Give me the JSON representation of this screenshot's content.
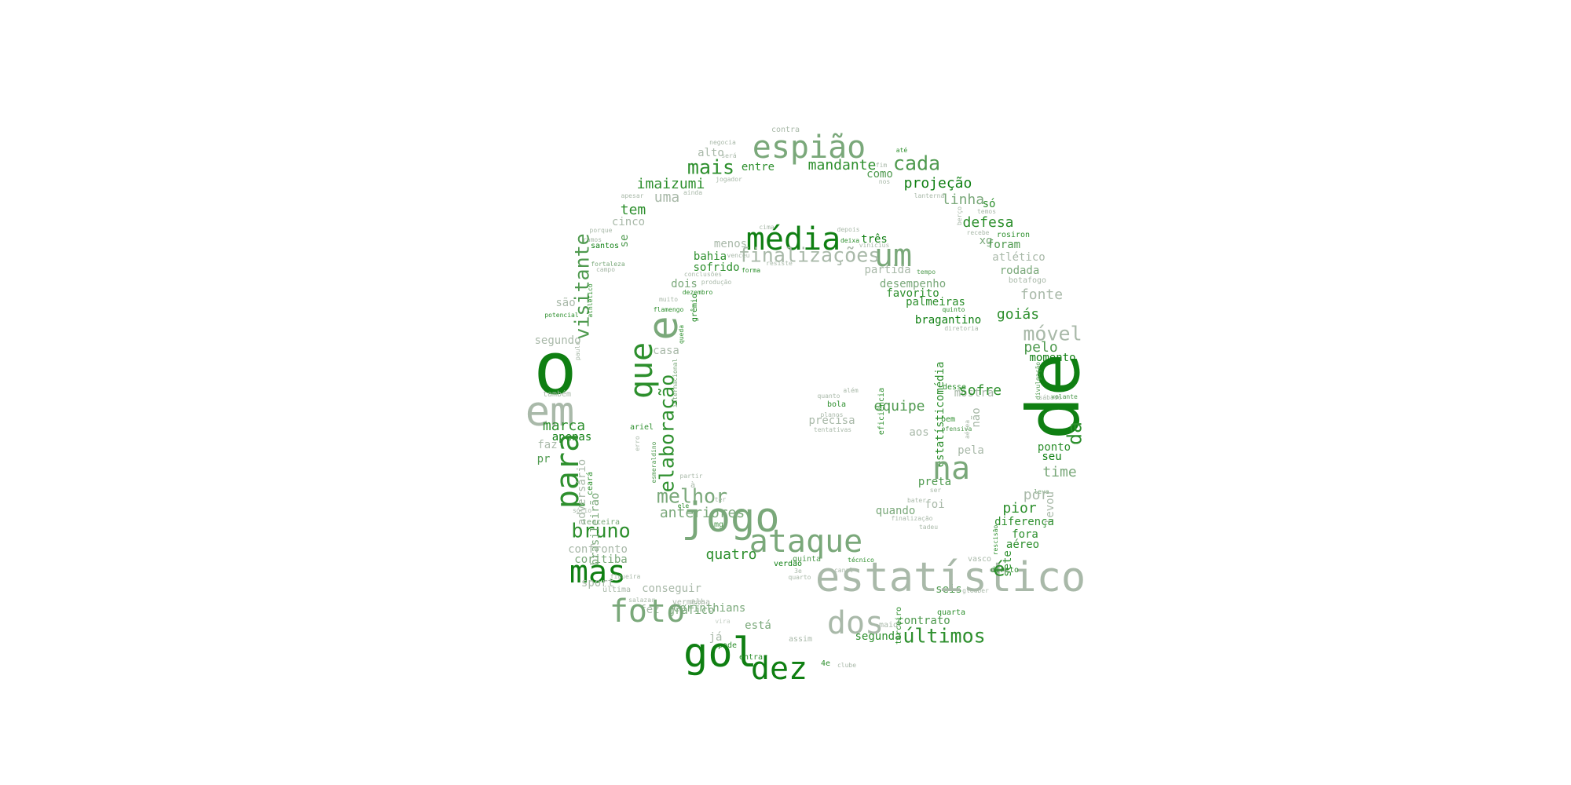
{
  "words": [
    {
      "text": "espião",
      "size": 3,
      "color": "c3"
    },
    {
      "text": "contra",
      "size": 7,
      "color": "c4"
    },
    {
      "text": "mais",
      "size": 4,
      "color": "c1"
    },
    {
      "text": "cada",
      "size": 4,
      "color": "c2"
    },
    {
      "text": "mandante",
      "size": 5,
      "color": "c1"
    },
    {
      "text": "entre",
      "size": 6,
      "color": "c1"
    },
    {
      "text": "imaizumi",
      "size": 5,
      "color": "c1"
    },
    {
      "text": "alto",
      "size": 6,
      "color": "c4"
    },
    {
      "text": "negocia",
      "size": 8,
      "color": "c4"
    },
    {
      "text": "será",
      "size": 8,
      "color": "c4"
    },
    {
      "text": "até",
      "size": 8,
      "color": "c1"
    },
    {
      "text": "como",
      "size": 6,
      "color": "c2"
    },
    {
      "text": "fim",
      "size": 8,
      "color": "c4"
    },
    {
      "text": "nos",
      "size": 8,
      "color": "c4"
    },
    {
      "text": "projeção",
      "size": 5,
      "color": "c0"
    },
    {
      "text": "uma",
      "size": 5,
      "color": "c4"
    },
    {
      "text": "jogador",
      "size": 8,
      "color": "c4"
    },
    {
      "text": "ainda",
      "size": 8,
      "color": "c4"
    },
    {
      "text": "apesar",
      "size": 8,
      "color": "c4"
    },
    {
      "text": "linha",
      "size": 5,
      "color": "c3"
    },
    {
      "text": "só",
      "size": 6,
      "color": "c1"
    },
    {
      "text": "lanterna",
      "size": 8,
      "color": "c4"
    },
    {
      "text": "temos",
      "size": 8,
      "color": "c4"
    },
    {
      "text": "tem",
      "size": 5,
      "color": "c1"
    },
    {
      "text": "cinco",
      "size": 6,
      "color": "c4"
    },
    {
      "text": "defesa",
      "size": 5,
      "color": "c1"
    },
    {
      "text": "média",
      "size": 3,
      "color": "c0"
    },
    {
      "text": "um",
      "size": 3,
      "color": "c3"
    },
    {
      "text": "finalizações",
      "size": 4,
      "color": "c4"
    },
    {
      "text": "cima",
      "size": 8,
      "color": "c4"
    },
    {
      "text": "depois",
      "size": 8,
      "color": "c4"
    },
    {
      "text": "deixa",
      "size": 8,
      "color": "c1"
    },
    {
      "text": "três",
      "size": 6,
      "color": "c0"
    },
    {
      "text": "vinícius",
      "size": 8,
      "color": "c4"
    },
    {
      "text": "menos",
      "size": 6,
      "color": "c4"
    },
    {
      "text": "bahia",
      "size": 6,
      "color": "c1"
    },
    {
      "text": "venceu",
      "size": 8,
      "color": "c4"
    },
    {
      "text": "resiste",
      "size": 8,
      "color": "c4"
    },
    {
      "text": "porque",
      "size": 8,
      "color": "c4"
    },
    {
      "text": "ramos",
      "size": 8,
      "color": "c4"
    },
    {
      "text": "santos",
      "size": 7,
      "color": "c0"
    },
    {
      "text": "fortaleza",
      "size": 8,
      "color": "c3"
    },
    {
      "text": "campo",
      "size": 8,
      "color": "c4"
    },
    {
      "text": "se",
      "size": 6,
      "color": "c2"
    },
    {
      "text": "visitante",
      "size": 4,
      "color": "c2"
    },
    {
      "text": "athletico",
      "size": 8,
      "color": "c1"
    },
    {
      "text": "potencial",
      "size": 8,
      "color": "c1"
    },
    {
      "text": "são",
      "size": 6,
      "color": "c4"
    },
    {
      "text": "sofrido",
      "size": 6,
      "color": "c1"
    },
    {
      "text": "partida",
      "size": 6,
      "color": "c4"
    },
    {
      "text": "tempo",
      "size": 8,
      "color": "c2"
    },
    {
      "text": "conclusões",
      "size": 8,
      "color": "c4"
    },
    {
      "text": "forma",
      "size": 8,
      "color": "c1"
    },
    {
      "text": "produção",
      "size": 8,
      "color": "c4"
    },
    {
      "text": "dois",
      "size": 6,
      "color": "c3"
    },
    {
      "text": "dezembro",
      "size": 8,
      "color": "c1"
    },
    {
      "text": "muito",
      "size": 8,
      "color": "c4"
    },
    {
      "text": "flamengo",
      "size": 8,
      "color": "c1"
    },
    {
      "text": "grêmio",
      "size": 7,
      "color": "c0"
    },
    {
      "text": "desempenho",
      "size": 6,
      "color": "c3"
    },
    {
      "text": "favorito",
      "size": 6,
      "color": "c1"
    },
    {
      "text": "palmeiras",
      "size": 6,
      "color": "c1"
    },
    {
      "text": "bragantino",
      "size": 6,
      "color": "c0"
    },
    {
      "text": "diretoria",
      "size": 8,
      "color": "c4"
    },
    {
      "text": "quinto",
      "size": 8,
      "color": "c1"
    },
    {
      "text": "berço",
      "size": 8,
      "color": "c4"
    },
    {
      "text": "recebe",
      "size": 8,
      "color": "c4"
    },
    {
      "text": "xg",
      "size": 6,
      "color": "c3"
    },
    {
      "text": "rosiron",
      "size": 7,
      "color": "c1"
    },
    {
      "text": "foram",
      "size": 6,
      "color": "c2"
    },
    {
      "text": "atlético",
      "size": 6,
      "color": "c4"
    },
    {
      "text": "rodada",
      "size": 6,
      "color": "c3"
    },
    {
      "text": "botafogo",
      "size": 7,
      "color": "c4"
    },
    {
      "text": "fonte",
      "size": 5,
      "color": "c4"
    },
    {
      "text": "goiás",
      "size": 5,
      "color": "c1"
    },
    {
      "text": "móvel",
      "size": 4,
      "color": "c4"
    },
    {
      "text": "pelo",
      "size": 5,
      "color": "c2"
    },
    {
      "text": "momento",
      "size": 6,
      "color": "c0"
    },
    {
      "text": "de",
      "size": 1,
      "color": "c0"
    },
    {
      "text": "divulgação",
      "size": 8,
      "color": "c2"
    },
    {
      "text": "sábado",
      "size": 8,
      "color": "c4"
    },
    {
      "text": "segundo",
      "size": 6,
      "color": "c4"
    },
    {
      "text": "paulo",
      "size": 8,
      "color": "c4"
    },
    {
      "text": "o",
      "size": 1,
      "color": "c0"
    },
    {
      "text": "e",
      "size": 2,
      "color": "c3"
    },
    {
      "text": "que",
      "size": 3,
      "color": "c1"
    },
    {
      "text": "casa",
      "size": 6,
      "color": "c4"
    },
    {
      "text": "queda",
      "size": 8,
      "color": "c1"
    },
    {
      "text": "internacional",
      "size": 8,
      "color": "c3"
    },
    {
      "text": "também",
      "size": 7,
      "color": "c4"
    },
    {
      "text": "em",
      "size": 2,
      "color": "c4"
    },
    {
      "text": "marca",
      "size": 5,
      "color": "c1"
    },
    {
      "text": "apenas",
      "size": 6,
      "color": "c0"
    },
    {
      "text": "faz",
      "size": 6,
      "color": "c4"
    },
    {
      "text": "pr",
      "size": 6,
      "color": "c2"
    },
    {
      "text": "para",
      "size": 3,
      "color": "c1"
    },
    {
      "text": "elaboração",
      "size": 4,
      "color": "c1"
    },
    {
      "text": "ariel",
      "size": 7,
      "color": "c1"
    },
    {
      "text": "erro",
      "size": 8,
      "color": "c4"
    },
    {
      "text": "esmeraldino",
      "size": 8,
      "color": "c2"
    },
    {
      "text": "partir",
      "size": 8,
      "color": "c4"
    },
    {
      "text": "à",
      "size": 7,
      "color": "c4"
    },
    {
      "text": "adversário",
      "size": 6,
      "color": "c4"
    },
    {
      "text": "ceará",
      "size": 7,
      "color": "c1"
    },
    {
      "text": "sócio",
      "size": 8,
      "color": "c4"
    },
    {
      "text": "terceira",
      "size": 7,
      "color": "c3"
    },
    {
      "text": "bruno",
      "size": 4,
      "color": "c1"
    },
    {
      "text": "brasileirão",
      "size": 6,
      "color": "c3"
    },
    {
      "text": "confronto",
      "size": 6,
      "color": "c4"
    },
    {
      "text": "coritiba",
      "size": 6,
      "color": "c3"
    },
    {
      "text": "mas",
      "size": 3,
      "color": "c0"
    },
    {
      "text": "sport",
      "size": 6,
      "color": "c4"
    },
    {
      "text": "figueira",
      "size": 8,
      "color": "c4"
    },
    {
      "text": "conseguir",
      "size": 6,
      "color": "c4"
    },
    {
      "text": "última",
      "size": 7,
      "color": "c4"
    },
    {
      "text": "salazar",
      "size": 8,
      "color": "c4"
    },
    {
      "text": "fez",
      "size": 6,
      "color": "c4"
    },
    {
      "text": "duas",
      "size": 8,
      "color": "c4"
    },
    {
      "text": "foto",
      "size": 3,
      "color": "c3"
    },
    {
      "text": "vermelha",
      "size": 7,
      "color": "c4"
    },
    {
      "text": "gráfico",
      "size": 6,
      "color": "c3"
    },
    {
      "text": "corinthians",
      "size": 6,
      "color": "c3"
    },
    {
      "text": "vira",
      "size": 8,
      "color": "c5"
    },
    {
      "text": "já",
      "size": 6,
      "color": "c4"
    },
    {
      "text": "pode",
      "size": 7,
      "color": "c1"
    },
    {
      "text": "gol",
      "size": 2,
      "color": "c0"
    },
    {
      "text": "entrar",
      "size": 7,
      "color": "c1"
    },
    {
      "text": "está",
      "size": 6,
      "color": "c3"
    },
    {
      "text": "assim",
      "size": 7,
      "color": "c4"
    },
    {
      "text": "dez",
      "size": 3,
      "color": "c0"
    },
    {
      "text": "4e",
      "size": 7,
      "color": "c1"
    },
    {
      "text": "clube",
      "size": 8,
      "color": "c4"
    },
    {
      "text": "segunda",
      "size": 6,
      "color": "c1"
    },
    {
      "text": "dos",
      "size": 3,
      "color": "c4"
    },
    {
      "text": "maior",
      "size": 7,
      "color": "c4"
    },
    {
      "text": "contrato",
      "size": 6,
      "color": "c2"
    },
    {
      "text": "terceiro",
      "size": 7,
      "color": "c1"
    },
    {
      "text": "últimos",
      "size": 4,
      "color": "c1"
    },
    {
      "text": "quarta",
      "size": 7,
      "color": "c1"
    },
    {
      "text": "seis",
      "size": 6,
      "color": "c2"
    },
    {
      "text": "gleuber",
      "size": 8,
      "color": "c4"
    },
    {
      "text": "estatístico",
      "size": 2,
      "color": "c4"
    },
    {
      "text": "ataque",
      "size": 3,
      "color": "c3"
    },
    {
      "text": "quinta",
      "size": 7,
      "color": "c2"
    },
    {
      "text": "técnico",
      "size": 8,
      "color": "c1"
    },
    {
      "text": "canal",
      "size": 8,
      "color": "c4"
    },
    {
      "text": "3e",
      "size": 8,
      "color": "c4"
    },
    {
      "text": "quarto",
      "size": 8,
      "color": "c4"
    },
    {
      "text": "verdão",
      "size": 7,
      "color": "c0"
    },
    {
      "text": "quatro",
      "size": 5,
      "color": "c1"
    },
    {
      "text": "melhor",
      "size": 4,
      "color": "c3"
    },
    {
      "text": "anteriores",
      "size": 5,
      "color": "c3"
    },
    {
      "text": "mg",
      "size": 7,
      "color": "c2"
    },
    {
      "text": "ter",
      "size": 8,
      "color": "c4"
    },
    {
      "text": "ele",
      "size": 8,
      "color": "c1"
    },
    {
      "text": "jogo",
      "size": 2,
      "color": "c3"
    },
    {
      "text": "equipe",
      "size": 5,
      "color": "c2"
    },
    {
      "text": "bola",
      "size": 7,
      "color": "c1"
    },
    {
      "text": "além",
      "size": 8,
      "color": "c4"
    },
    {
      "text": "quanto",
      "size": 8,
      "color": "c4"
    },
    {
      "text": "planos",
      "size": 8,
      "color": "c4"
    },
    {
      "text": "precisa",
      "size": 6,
      "color": "c4"
    },
    {
      "text": "tentativas",
      "size": 8,
      "color": "c4"
    },
    {
      "text": "eficiência",
      "size": 7,
      "color": "c1"
    },
    {
      "text": "desse",
      "size": 7,
      "color": "c1"
    },
    {
      "text": "bem",
      "size": 7,
      "color": "c1"
    },
    {
      "text": "mostra",
      "size": 6,
      "color": "c4"
    },
    {
      "text": "aos",
      "size": 6,
      "color": "c4"
    },
    {
      "text": "estatísticomédia",
      "size": 6,
      "color": "c1"
    },
    {
      "text": "ofensiva",
      "size": 8,
      "color": "c2"
    },
    {
      "text": "aérea",
      "size": 8,
      "color": "c4"
    },
    {
      "text": "não",
      "size": 6,
      "color": "c4"
    },
    {
      "text": "pela",
      "size": 6,
      "color": "c4"
    },
    {
      "text": "sofre",
      "size": 5,
      "color": "c1"
    },
    {
      "text": "preta",
      "size": 6,
      "color": "c2"
    },
    {
      "text": "ser",
      "size": 8,
      "color": "c4"
    },
    {
      "text": "na",
      "size": 3,
      "color": "c3"
    },
    {
      "text": "foi",
      "size": 6,
      "color": "c4"
    },
    {
      "text": "bater",
      "size": 8,
      "color": "c4"
    },
    {
      "text": "quando",
      "size": 6,
      "color": "c3"
    },
    {
      "text": "finalização",
      "size": 8,
      "color": "c4"
    },
    {
      "text": "tadeu",
      "size": 8,
      "color": "c4"
    },
    {
      "text": "volante",
      "size": 8,
      "color": "c2"
    },
    {
      "text": "da",
      "size": 4,
      "color": "c1"
    },
    {
      "text": "ponto",
      "size": 6,
      "color": "c1"
    },
    {
      "text": "seu",
      "size": 6,
      "color": "c0"
    },
    {
      "text": "time",
      "size": 5,
      "color": "c3"
    },
    {
      "text": "leva",
      "size": 8,
      "color": "c3"
    },
    {
      "text": "por",
      "size": 5,
      "color": "c4"
    },
    {
      "text": "levou",
      "size": 6,
      "color": "c4"
    },
    {
      "text": "pior",
      "size": 5,
      "color": "c1"
    },
    {
      "text": "diferença",
      "size": 6,
      "color": "c1"
    },
    {
      "text": "fora",
      "size": 6,
      "color": "c1"
    },
    {
      "text": "aéreo",
      "size": 6,
      "color": "c1"
    },
    {
      "text": "rescisão",
      "size": 8,
      "color": "c1"
    },
    {
      "text": "é",
      "size": 4,
      "color": "c1"
    },
    {
      "text": "sete",
      "size": 6,
      "color": "c1"
    },
    {
      "text": "vasco",
      "size": 7,
      "color": "c4"
    },
    {
      "text": "direto",
      "size": 7,
      "color": "c1"
    }
  ]
}
